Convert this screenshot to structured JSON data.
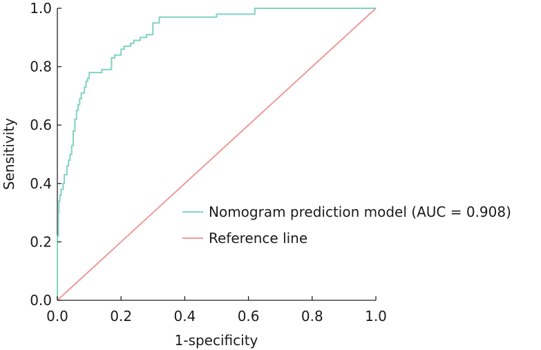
{
  "chart_data": {
    "type": "line",
    "title": "",
    "xlabel": "1-specificity",
    "ylabel": "Sensitivity",
    "xlim": [
      0,
      1
    ],
    "ylim": [
      0,
      1
    ],
    "x_ticks": [
      "0.0",
      "0.2",
      "0.4",
      "0.6",
      "0.8",
      "1.0"
    ],
    "y_ticks": [
      "0.0",
      "0.2",
      "0.4",
      "0.6",
      "0.8",
      "1.0"
    ],
    "legend_position": "center-right",
    "grid": false,
    "series": [
      {
        "name": "Nomogram prediction model (AUC = 0.908)",
        "color": "#7fd3c2",
        "x": [
          0.0,
          0.0,
          0.003,
          0.003,
          0.005,
          0.005,
          0.008,
          0.008,
          0.012,
          0.012,
          0.018,
          0.018,
          0.022,
          0.022,
          0.03,
          0.03,
          0.035,
          0.035,
          0.04,
          0.04,
          0.045,
          0.045,
          0.05,
          0.05,
          0.055,
          0.055,
          0.06,
          0.06,
          0.065,
          0.065,
          0.07,
          0.07,
          0.075,
          0.075,
          0.085,
          0.085,
          0.09,
          0.09,
          0.095,
          0.095,
          0.1,
          0.1,
          0.105,
          0.105,
          0.14,
          0.14,
          0.17,
          0.17,
          0.18,
          0.18,
          0.2,
          0.2,
          0.21,
          0.21,
          0.23,
          0.23,
          0.24,
          0.24,
          0.26,
          0.26,
          0.28,
          0.28,
          0.3,
          0.3,
          0.32,
          0.32,
          0.5,
          0.5,
          0.62,
          0.62,
          1.0
        ],
        "y": [
          0.0,
          0.22,
          0.22,
          0.3,
          0.3,
          0.34,
          0.34,
          0.36,
          0.36,
          0.38,
          0.38,
          0.4,
          0.4,
          0.43,
          0.43,
          0.46,
          0.46,
          0.48,
          0.48,
          0.5,
          0.5,
          0.53,
          0.53,
          0.58,
          0.58,
          0.62,
          0.62,
          0.65,
          0.65,
          0.67,
          0.67,
          0.69,
          0.69,
          0.71,
          0.71,
          0.73,
          0.73,
          0.75,
          0.75,
          0.76,
          0.76,
          0.78,
          0.78,
          0.78,
          0.78,
          0.79,
          0.79,
          0.83,
          0.83,
          0.84,
          0.84,
          0.86,
          0.86,
          0.87,
          0.87,
          0.88,
          0.88,
          0.89,
          0.89,
          0.9,
          0.9,
          0.91,
          0.91,
          0.95,
          0.95,
          0.97,
          0.97,
          0.98,
          0.98,
          1.0,
          1.0
        ]
      },
      {
        "name": "Reference line",
        "color": "#ee9a9a",
        "x": [
          0.0,
          1.0
        ],
        "y": [
          0.0,
          1.0
        ]
      }
    ]
  }
}
